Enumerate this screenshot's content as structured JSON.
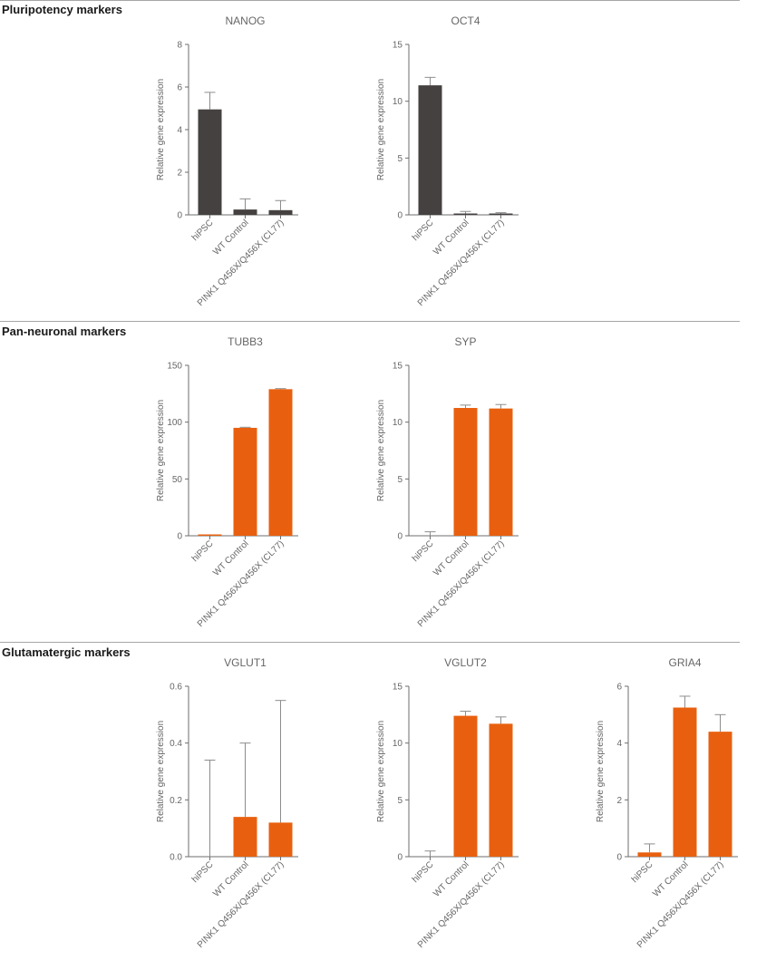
{
  "sections": [
    {
      "title": "Pluripotency markers"
    },
    {
      "title": "Pan-neuronal markers"
    },
    {
      "title": "Glutamatergic markers"
    }
  ],
  "colors": {
    "dark_bar": "#444140",
    "orange_bar": "#e8600f",
    "error_bar": "#8c8c8c",
    "axis": "#6e6e6e",
    "text": "#666666"
  },
  "chart_data": [
    {
      "type": "bar",
      "title": "NANOG",
      "ylabel": "Relative gene expression",
      "categories": [
        "hiPSC",
        "WT Control",
        "PINK1 Q456X/Q456X (CL77)"
      ],
      "values": [
        4.95,
        0.25,
        0.22
      ],
      "errors": [
        0.8,
        0.5,
        0.45
      ],
      "ylim": [
        0,
        8
      ],
      "yticks": [
        0,
        2,
        4,
        6,
        8
      ],
      "ytick_labels": [
        "0",
        "2",
        "4",
        "6",
        "8"
      ],
      "color": "#444140"
    },
    {
      "type": "bar",
      "title": "OCT4",
      "ylabel": "Relative gene expression",
      "categories": [
        "hiPSC",
        "WT Control",
        "PINK1 Q456X/Q456X (CL77)"
      ],
      "values": [
        11.4,
        0.05,
        0.04
      ],
      "errors": [
        0.7,
        0.25,
        0.15
      ],
      "ylim": [
        0,
        15
      ],
      "yticks": [
        0,
        5,
        10,
        15
      ],
      "ytick_labels": [
        "0",
        "5",
        "10",
        "15"
      ],
      "color": "#444140"
    },
    {
      "type": "bar",
      "title": "TUBB3",
      "ylabel": "Relative gene expression",
      "categories": [
        "hiPSC",
        "WT Control",
        "PINK1 Q456X/Q456X (CL77)"
      ],
      "values": [
        0.5,
        95,
        129
      ],
      "errors": [
        0.3,
        0.5,
        0.5
      ],
      "ylim": [
        0,
        150
      ],
      "yticks": [
        0,
        50,
        100,
        150
      ],
      "ytick_labels": [
        "0",
        "50",
        "100",
        "150"
      ],
      "color": "#e8600f"
    },
    {
      "type": "bar",
      "title": "SYP",
      "ylabel": "Relative gene expression",
      "categories": [
        "hiPSC",
        "WT Control",
        "PINK1 Q456X/Q456X (CL77)"
      ],
      "values": [
        0.0,
        11.25,
        11.2
      ],
      "errors": [
        0.35,
        0.25,
        0.35
      ],
      "ylim": [
        0,
        15
      ],
      "yticks": [
        0,
        5,
        10,
        15
      ],
      "ytick_labels": [
        "0",
        "5",
        "10",
        "15"
      ],
      "color": "#e8600f"
    },
    {
      "type": "bar",
      "title": "VGLUT1",
      "ylabel": "Relative gene expression",
      "categories": [
        "hiPSC",
        "WT Control",
        "PINK1 Q456X/Q456X (CL77)"
      ],
      "values": [
        0.0,
        0.14,
        0.12
      ],
      "errors": [
        0.34,
        0.26,
        0.43
      ],
      "ylim": [
        0,
        0.6
      ],
      "yticks": [
        0,
        0.2,
        0.4,
        0.6
      ],
      "ytick_labels": [
        "0.0",
        "0.2",
        "0.4",
        "0.6"
      ],
      "color": "#e8600f"
    },
    {
      "type": "bar",
      "title": "VGLUT2",
      "ylabel": "Relative gene expression",
      "categories": [
        "hiPSC",
        "WT Control",
        "PINK1 Q456X/Q456X (CL77)"
      ],
      "values": [
        0.0,
        12.4,
        11.7
      ],
      "errors": [
        0.5,
        0.4,
        0.6
      ],
      "ylim": [
        0,
        15
      ],
      "yticks": [
        0,
        5,
        10,
        15
      ],
      "ytick_labels": [
        "0",
        "5",
        "10",
        "15"
      ],
      "color": "#e8600f"
    },
    {
      "type": "bar",
      "title": "GRIA4",
      "ylabel": "Relative gene expression",
      "categories": [
        "hiPSC",
        "WT Control",
        "PINK1 Q456X/Q456X (CL77)"
      ],
      "values": [
        0.15,
        5.25,
        4.4
      ],
      "errors": [
        0.3,
        0.4,
        0.6
      ],
      "ylim": [
        0,
        6
      ],
      "yticks": [
        0,
        2,
        4,
        6
      ],
      "ytick_labels": [
        "0",
        "2",
        "4",
        "6"
      ],
      "color": "#e8600f"
    }
  ]
}
